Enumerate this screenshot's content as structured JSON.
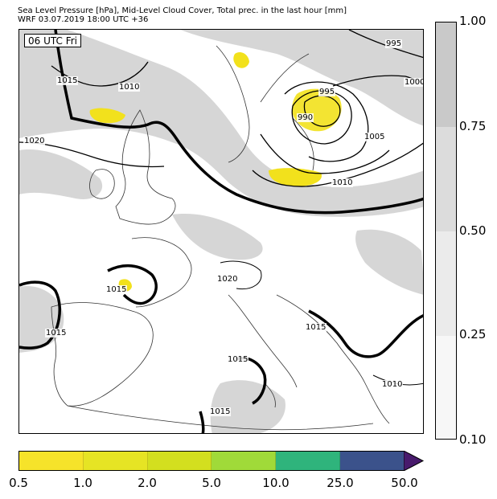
{
  "header": {
    "line1": "Sea Level Pressure [hPa], Mid-Level Cloud Cover, Total prec. in the last hour [mm]",
    "line2": "WRF 03.07.2019 18:00 UTC +36"
  },
  "time_badge": "06 UTC Fri",
  "isobar_labels": [
    "995",
    "1000",
    "995",
    "990",
    "1005",
    "1010",
    "1010",
    "1015",
    "1020",
    "1020",
    "1015",
    "1015",
    "1015",
    "1015",
    "1010",
    "1015"
  ],
  "cloud_cover_scale": {
    "ticks": [
      "1.00",
      "0.75",
      "0.50",
      "0.25",
      "0.10"
    ],
    "colors": [
      "#c9c9c9",
      "#dcdcdc",
      "#ebebeb",
      "#f7f7f7"
    ]
  },
  "precip_scale": {
    "ticks": [
      "0.5",
      "1.0",
      "2.0",
      "5.0",
      "10.0",
      "25.0",
      "50.0"
    ],
    "colors": [
      "#f6e32a",
      "#e6e424",
      "#d3df1f",
      "#a0da39",
      "#2fb47c",
      "#3b528b",
      "#481a6c"
    ]
  }
}
